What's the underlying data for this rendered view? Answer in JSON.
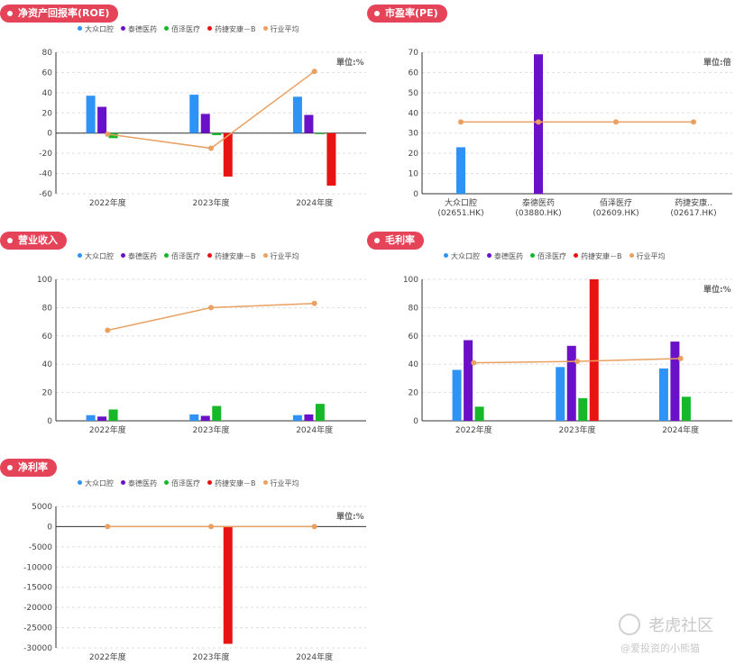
{
  "colors": {
    "series": [
      "#2e93f5",
      "#6a10c8",
      "#16b82a",
      "#e81414"
    ],
    "average": "#e9a060",
    "title_bg": "#e54358"
  },
  "legend_common": [
    "大众口腔",
    "泰德医药",
    "佰泽医疗",
    "药捷安康－B",
    "行业平均"
  ],
  "charts": [
    {
      "title": "净资产回报率(ROE)",
      "unit": "單位:%",
      "chart_data": {
        "type": "bar",
        "categories": [
          "2022年度",
          "2023年度",
          "2024年度"
        ],
        "series": [
          {
            "name": "大众口腔",
            "values": [
              37,
              38,
              36
            ]
          },
          {
            "name": "泰德医药",
            "values": [
              26,
              19,
              18
            ]
          },
          {
            "name": "佰泽医疗",
            "values": [
              -5,
              -2,
              -1
            ]
          },
          {
            "name": "药捷安康－B",
            "values": [
              0,
              -43,
              -52
            ]
          }
        ],
        "average": {
          "name": "行业平均",
          "values": [
            -1,
            -15,
            61
          ]
        },
        "ylim": [
          -60,
          80
        ],
        "yticks": [
          -60,
          -40,
          -20,
          0,
          20,
          40,
          60,
          80
        ]
      }
    },
    {
      "title": "市盈率(PE)",
      "unit": "單位:倍",
      "chart_data": {
        "type": "bar",
        "categories": [
          [
            "大众口腔",
            "(02651.HK)"
          ],
          [
            "泰德医药",
            "(03880.HK)"
          ],
          [
            "佰泽医疗",
            "(02609.HK)"
          ],
          [
            "药捷安康..",
            "(02617.HK)"
          ]
        ],
        "values": [
          23,
          69,
          0,
          0
        ],
        "average": {
          "name": "行业平均",
          "values": [
            35.5,
            35.5,
            35.5,
            35.5
          ]
        },
        "ylim": [
          0,
          70
        ],
        "yticks": [
          0,
          10,
          20,
          30,
          40,
          50,
          60,
          70
        ]
      }
    },
    {
      "title": "营业收入",
      "unit": "",
      "chart_data": {
        "type": "bar",
        "categories": [
          "2022年度",
          "2023年度",
          "2024年度"
        ],
        "series": [
          {
            "name": "大众口腔",
            "values": [
              4,
              4.5,
              4
            ]
          },
          {
            "name": "泰德医药",
            "values": [
              3,
              3.5,
              4.5
            ]
          },
          {
            "name": "佰泽医疗",
            "values": [
              8,
              10.5,
              12
            ]
          },
          {
            "name": "药捷安康－B",
            "values": [
              0,
              0,
              0
            ]
          }
        ],
        "average": {
          "name": "行业平均",
          "values": [
            64,
            80,
            83
          ]
        },
        "ylim": [
          0,
          100
        ],
        "yticks": [
          0,
          20,
          40,
          60,
          80,
          100
        ]
      }
    },
    {
      "title": "毛利率",
      "unit": "單位:%",
      "chart_data": {
        "type": "bar",
        "categories": [
          "2022年度",
          "2023年度",
          "2024年度"
        ],
        "series": [
          {
            "name": "大众口腔",
            "values": [
              36,
              38,
              37
            ]
          },
          {
            "name": "泰德医药",
            "values": [
              57,
              53,
              56
            ]
          },
          {
            "name": "佰泽医疗",
            "values": [
              10,
              16,
              17
            ]
          },
          {
            "name": "药捷安康－B",
            "values": [
              0,
              100,
              0
            ]
          }
        ],
        "average": {
          "name": "行业平均",
          "values": [
            41,
            42,
            44
          ]
        },
        "ylim": [
          0,
          100
        ],
        "yticks": [
          0,
          20,
          40,
          60,
          80,
          100
        ]
      }
    },
    {
      "title": "净利率",
      "unit": "單位:%",
      "chart_data": {
        "type": "bar",
        "categories": [
          "2022年度",
          "2023年度",
          "2024年度"
        ],
        "series": [
          {
            "name": "大众口腔",
            "values": [
              0,
              0,
              0
            ]
          },
          {
            "name": "泰德医药",
            "values": [
              0,
              0,
              0
            ]
          },
          {
            "name": "佰泽医疗",
            "values": [
              0,
              0,
              0
            ]
          },
          {
            "name": "药捷安康－B",
            "values": [
              0,
              -29000,
              0
            ]
          }
        ],
        "average": {
          "name": "行业平均",
          "values": [
            0,
            0,
            0
          ]
        },
        "ylim": [
          -30000,
          5000
        ],
        "yticks": [
          -30000,
          -25000,
          -20000,
          -15000,
          -10000,
          -5000,
          0,
          5000
        ]
      }
    }
  ],
  "watermark": {
    "brand": "老虎社区",
    "handle": "@爱投资的小熊猫"
  }
}
